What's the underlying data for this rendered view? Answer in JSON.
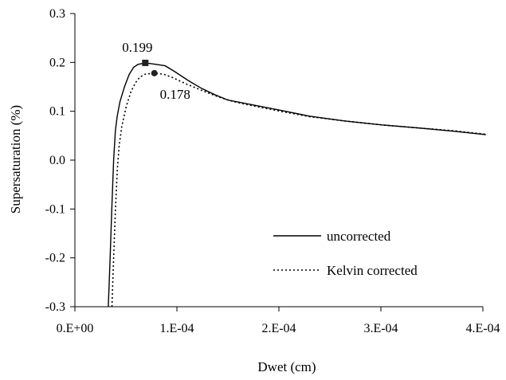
{
  "chart_data": {
    "type": "line",
    "title": "",
    "xlabel": "Dwet (cm)",
    "ylabel": "Supersaturation (%)",
    "xlim": [
      0,
      0.0004
    ],
    "ylim": [
      -0.3,
      0.3
    ],
    "grid": false,
    "legend_position": "lower-right",
    "x_ticks": [
      {
        "value": 0,
        "label": "0.E+00"
      },
      {
        "value": 0.0001,
        "label": "1.E-04"
      },
      {
        "value": 0.0002,
        "label": "2.E-04"
      },
      {
        "value": 0.0003,
        "label": "3.E-04"
      },
      {
        "value": 0.0004,
        "label": "4.E-04"
      }
    ],
    "y_ticks": [
      {
        "value": -0.3,
        "label": "-0.3"
      },
      {
        "value": -0.2,
        "label": "-0.2"
      },
      {
        "value": -0.1,
        "label": "-0.1"
      },
      {
        "value": 0.0,
        "label": "0.0"
      },
      {
        "value": 0.1,
        "label": "0.1"
      },
      {
        "value": 0.2,
        "label": "0.2"
      },
      {
        "value": 0.3,
        "label": "0.3"
      }
    ],
    "series": [
      {
        "name": "uncorrected",
        "style": "solid",
        "color": "#000000",
        "points": [
          [
            3.27e-05,
            -0.3
          ],
          [
            3.45e-05,
            -0.2
          ],
          [
            3.62e-05,
            -0.1
          ],
          [
            3.8e-05,
            0.0
          ],
          [
            3.97e-05,
            0.06
          ],
          [
            4.15e-05,
            0.09
          ],
          [
            4.42e-05,
            0.12
          ],
          [
            4.86e-05,
            0.15
          ],
          [
            5.31e-05,
            0.175
          ],
          [
            5.75e-05,
            0.19
          ],
          [
            6.19e-05,
            0.196
          ],
          [
            6.9e-05,
            0.199
          ],
          [
            7.97e-05,
            0.196
          ],
          [
            8.85e-05,
            0.193
          ],
          [
            9.73e-05,
            0.182
          ],
          [
            0.000111,
            0.163
          ],
          [
            0.000124,
            0.147
          ],
          [
            0.000137,
            0.134
          ],
          [
            0.00015,
            0.123
          ],
          [
            0.000177,
            0.112
          ],
          [
            0.000204,
            0.101
          ],
          [
            0.00023,
            0.09
          ],
          [
            0.000265,
            0.08
          ],
          [
            0.000301,
            0.072
          ],
          [
            0.000336,
            0.066
          ],
          [
            0.000372,
            0.059
          ],
          [
            0.000403,
            0.052
          ]
        ]
      },
      {
        "name": "Kelvin corrected",
        "style": "dotted",
        "color": "#000000",
        "points": [
          [
            3.63e-05,
            -0.3
          ],
          [
            3.8e-05,
            -0.2
          ],
          [
            3.98e-05,
            -0.1
          ],
          [
            4.16e-05,
            -0.02
          ],
          [
            4.34e-05,
            0.03
          ],
          [
            4.6e-05,
            0.07
          ],
          [
            5.04e-05,
            0.11
          ],
          [
            5.49e-05,
            0.14
          ],
          [
            5.93e-05,
            0.158
          ],
          [
            6.37e-05,
            0.17
          ],
          [
            6.9e-05,
            0.176
          ],
          [
            7.79e-05,
            0.178
          ],
          [
            8.67e-05,
            0.176
          ],
          [
            9.56e-05,
            0.169
          ],
          [
            0.000108,
            0.157
          ],
          [
            0.000124,
            0.143
          ],
          [
            0.00014,
            0.13
          ],
          [
            0.000155,
            0.12
          ],
          [
            0.000177,
            0.11
          ],
          [
            0.000204,
            0.099
          ],
          [
            0.00023,
            0.089
          ],
          [
            0.000265,
            0.08
          ],
          [
            0.000301,
            0.072
          ],
          [
            0.000336,
            0.066
          ],
          [
            0.000372,
            0.06
          ],
          [
            0.000403,
            0.053
          ]
        ]
      }
    ],
    "markers": [
      {
        "name": "uncorrected peak",
        "shape": "square",
        "x": 6.9e-05,
        "y": 0.199,
        "label": "0.199"
      },
      {
        "name": "Kelvin corrected peak",
        "shape": "circle",
        "x": 7.79e-05,
        "y": 0.178,
        "label": "0.178"
      }
    ]
  }
}
